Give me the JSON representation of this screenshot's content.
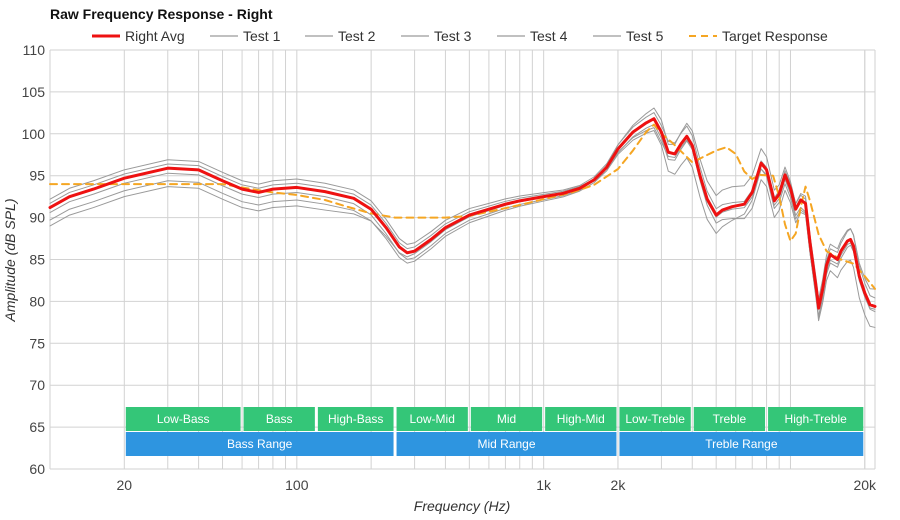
{
  "chart_data": {
    "type": "line",
    "title": "Raw Frequency Response - Right",
    "xlabel": "Frequency (Hz)",
    "ylabel": "Amplitude (dB SPL)",
    "xscale": "log",
    "xlim": [
      10,
      22000
    ],
    "ylim": [
      60,
      110
    ],
    "x_ticks": [
      {
        "value": 20,
        "label": "20"
      },
      {
        "value": 100,
        "label": "100"
      },
      {
        "value": 1000,
        "label": "1k"
      },
      {
        "value": 2000,
        "label": "2k"
      },
      {
        "value": 20000,
        "label": "20k"
      }
    ],
    "y_ticks": [
      60,
      65,
      70,
      75,
      80,
      85,
      90,
      95,
      100,
      105,
      110
    ],
    "grid": true,
    "legend_position": "top",
    "series": [
      {
        "name": "Right Avg",
        "style": "solid",
        "color": "#ee1111",
        "width": 3,
        "points": [
          [
            10,
            91.2
          ],
          [
            12,
            92.5
          ],
          [
            15,
            93.4
          ],
          [
            20,
            94.7
          ],
          [
            30,
            95.9
          ],
          [
            40,
            95.7
          ],
          [
            50,
            94.4
          ],
          [
            60,
            93.4
          ],
          [
            70,
            93.0
          ],
          [
            80,
            93.4
          ],
          [
            100,
            93.6
          ],
          [
            130,
            93.1
          ],
          [
            170,
            92.3
          ],
          [
            200,
            91.0
          ],
          [
            230,
            88.8
          ],
          [
            260,
            86.5
          ],
          [
            280,
            85.8
          ],
          [
            300,
            86.0
          ],
          [
            350,
            87.4
          ],
          [
            400,
            88.8
          ],
          [
            500,
            90.3
          ],
          [
            600,
            91.0
          ],
          [
            700,
            91.6
          ],
          [
            800,
            92.0
          ],
          [
            1000,
            92.5
          ],
          [
            1200,
            92.9
          ],
          [
            1400,
            93.5
          ],
          [
            1600,
            94.5
          ],
          [
            1800,
            96.0
          ],
          [
            2000,
            98.2
          ],
          [
            2300,
            100.2
          ],
          [
            2600,
            101.3
          ],
          [
            2800,
            101.8
          ],
          [
            3000,
            100.2
          ],
          [
            3200,
            97.8
          ],
          [
            3400,
            97.6
          ],
          [
            3600,
            98.8
          ],
          [
            3800,
            99.7
          ],
          [
            4000,
            98.6
          ],
          [
            4300,
            95.0
          ],
          [
            4600,
            92.2
          ],
          [
            5000,
            90.3
          ],
          [
            5300,
            90.9
          ],
          [
            5800,
            91.3
          ],
          [
            6500,
            91.6
          ],
          [
            7000,
            93.0
          ],
          [
            7600,
            96.5
          ],
          [
            8000,
            95.7
          ],
          [
            8600,
            92.0
          ],
          [
            9000,
            92.8
          ],
          [
            9500,
            95.1
          ],
          [
            10000,
            93.5
          ],
          [
            10500,
            91.0
          ],
          [
            11000,
            92.1
          ],
          [
            11500,
            91.7
          ],
          [
            12000,
            87.0
          ],
          [
            12800,
            81.0
          ],
          [
            13000,
            79.2
          ],
          [
            13500,
            81.5
          ],
          [
            14000,
            84.3
          ],
          [
            14500,
            85.6
          ],
          [
            15500,
            85.0
          ],
          [
            16000,
            86.0
          ],
          [
            17000,
            87.2
          ],
          [
            17500,
            87.4
          ],
          [
            18000,
            86.6
          ],
          [
            19000,
            83.0
          ],
          [
            20000,
            81.0
          ],
          [
            21000,
            79.6
          ],
          [
            22000,
            79.4
          ]
        ]
      },
      {
        "name": "Test 1",
        "style": "solid",
        "color": "#9a9a9a",
        "width": 1,
        "offsets": [
          1.0,
          1.0,
          0.3,
          1.3
        ],
        "seed": 1.3
      },
      {
        "name": "Test 2",
        "style": "solid",
        "color": "#9a9a9a",
        "width": 1,
        "offsets": [
          -1.5,
          -1.2,
          -0.3,
          -1.2
        ],
        "seed": 2.7
      },
      {
        "name": "Test 3",
        "style": "solid",
        "color": "#9a9a9a",
        "width": 1,
        "offsets": [
          0.5,
          0.5,
          0.2,
          -2.0
        ],
        "seed": 4.1
      },
      {
        "name": "Test 4",
        "style": "solid",
        "color": "#9a9a9a",
        "width": 1,
        "offsets": [
          -0.6,
          -0.8,
          -0.2,
          2.4
        ],
        "seed": 5.6
      },
      {
        "name": "Test 5",
        "style": "solid",
        "color": "#9a9a9a",
        "width": 1,
        "offsets": [
          -2.2,
          -0.3,
          0.0,
          -2.6
        ],
        "seed": 6.9
      },
      {
        "name": "Target Response",
        "style": "dashed",
        "color": "#f5a623",
        "width": 2,
        "points": [
          [
            10,
            94.0
          ],
          [
            20,
            94.0
          ],
          [
            30,
            94.0
          ],
          [
            50,
            94.0
          ],
          [
            60,
            93.6
          ],
          [
            80,
            93.0
          ],
          [
            100,
            92.7
          ],
          [
            130,
            92.1
          ],
          [
            160,
            91.3
          ],
          [
            200,
            90.5
          ],
          [
            250,
            90.0
          ],
          [
            300,
            90.0
          ],
          [
            400,
            90.0
          ],
          [
            500,
            90.2
          ],
          [
            600,
            90.7
          ],
          [
            800,
            91.5
          ],
          [
            1000,
            92.2
          ],
          [
            1300,
            93.0
          ],
          [
            1600,
            93.9
          ],
          [
            2000,
            95.8
          ],
          [
            2300,
            98.0
          ],
          [
            2600,
            100.2
          ],
          [
            2800,
            101.1
          ],
          [
            3000,
            100.0
          ],
          [
            3300,
            99.0
          ],
          [
            4000,
            96.6
          ],
          [
            5000,
            98.0
          ],
          [
            5500,
            98.4
          ],
          [
            6000,
            97.6
          ],
          [
            6500,
            95.5
          ],
          [
            7000,
            94.6
          ],
          [
            7500,
            95.1
          ],
          [
            8500,
            95.0
          ],
          [
            9000,
            92.5
          ],
          [
            9500,
            89.2
          ],
          [
            10000,
            87.2
          ],
          [
            10500,
            88.1
          ],
          [
            11000,
            91.2
          ],
          [
            11500,
            93.7
          ],
          [
            12000,
            92.0
          ],
          [
            13000,
            88.0
          ],
          [
            14000,
            86.0
          ],
          [
            16000,
            85.0
          ],
          [
            18000,
            84.5
          ],
          [
            20000,
            83.0
          ],
          [
            22000,
            81.5
          ]
        ]
      }
    ],
    "bands": [
      {
        "label": "Low-Bass",
        "from": 20,
        "to": 60,
        "color": "#34c678"
      },
      {
        "label": "Bass",
        "from": 60,
        "to": 120,
        "color": "#34c678"
      },
      {
        "label": "High-Bass",
        "from": 120,
        "to": 250,
        "color": "#34c678"
      },
      {
        "label": "Low-Mid",
        "from": 250,
        "to": 500,
        "color": "#34c678"
      },
      {
        "label": "Mid",
        "from": 500,
        "to": 1000,
        "color": "#34c678"
      },
      {
        "label": "High-Mid",
        "from": 1000,
        "to": 2000,
        "color": "#34c678"
      },
      {
        "label": "Low-Treble",
        "from": 2000,
        "to": 4000,
        "color": "#34c678"
      },
      {
        "label": "Treble",
        "from": 4000,
        "to": 8000,
        "color": "#34c678"
      },
      {
        "label": "High-Treble",
        "from": 8000,
        "to": 20000,
        "color": "#34c678"
      }
    ],
    "ranges": [
      {
        "label": "Bass Range",
        "from": 20,
        "to": 250,
        "color": "#2e95e0"
      },
      {
        "label": "Mid Range",
        "from": 250,
        "to": 2000,
        "color": "#2e95e0"
      },
      {
        "label": "Treble Range",
        "from": 2000,
        "to": 20000,
        "color": "#2e95e0"
      }
    ]
  }
}
